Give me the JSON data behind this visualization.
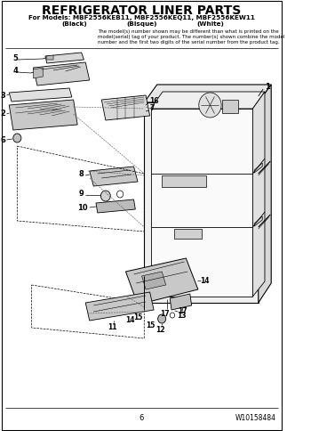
{
  "title": "REFRIGERATOR LINER PARTS",
  "subtitle": "For Models: MBF2556KEB11, MBF2556KEQ11, MBF2556KEW11",
  "col1": "(Black)",
  "col2": "(Bisque)",
  "col3": "(White)",
  "note_line1": "The model(s) number shown may be different than what is printed on the",
  "note_line2": "model(serial) tag of your product. The number(s) shown combine the model",
  "note_line3": "number and the first two digits of the serial number from the product tag.",
  "page_number": "6",
  "doc_number": "W10158484",
  "bg_color": "#ffffff",
  "text_color": "#000000",
  "fig_width": 3.5,
  "fig_height": 4.84,
  "dpi": 100
}
